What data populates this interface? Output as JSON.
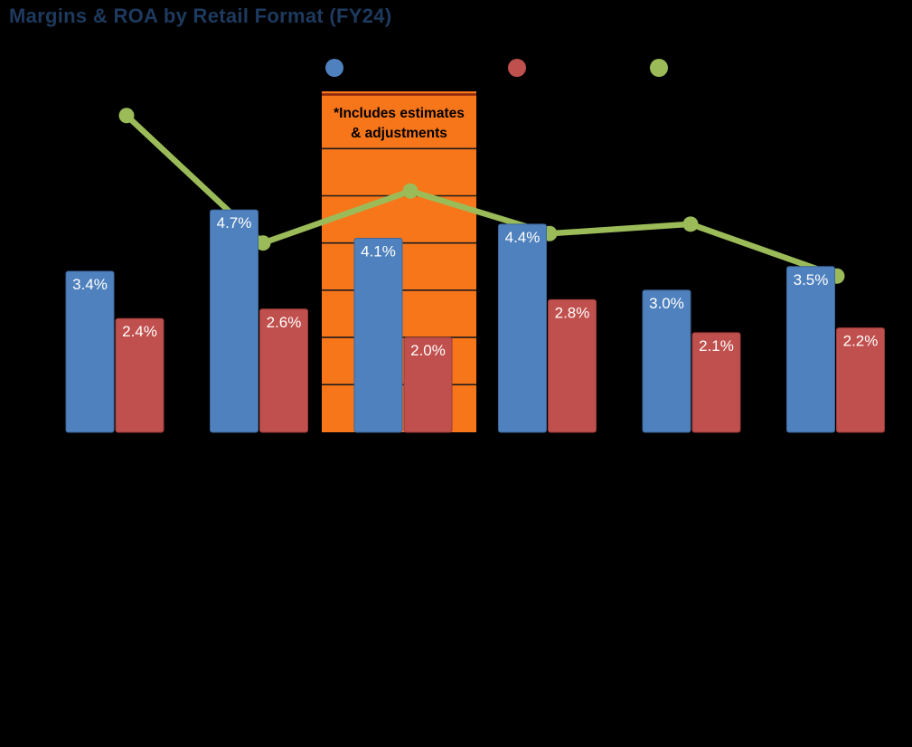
{
  "header": {
    "title": "Margins & ROA by Retail Format (FY24)",
    "title_color": "#1E3A5F"
  },
  "legend": {
    "items": [
      {
        "name": "blue-bar-series",
        "label": "",
        "color": "#4E81BD"
      },
      {
        "name": "red-bar-series",
        "label": "",
        "color": "#C0504D"
      },
      {
        "name": "green-line-series",
        "label": "",
        "color": "#9BBB59"
      }
    ]
  },
  "callout": {
    "line1": "*Includes estimates",
    "line2": "& adjustments",
    "fill": "#F8761A",
    "top_border_color": "#8C2A10",
    "gridline_color": "#1C1C1C"
  },
  "chart_data": {
    "type": "bar",
    "title": "Margins & ROA by Retail Format (FY24)",
    "categories": [
      "",
      "",
      "",
      "",
      "",
      ""
    ],
    "series": [
      {
        "name": "",
        "render": "bar",
        "color": "#4E81BD",
        "border_color": "#3D6699",
        "values": [
          3.4,
          4.7,
          4.1,
          4.4,
          3.0,
          3.5
        ],
        "data_labels": [
          "3.4%",
          "4.7%",
          "4.1%",
          "4.4%",
          "3.0%",
          "3.5%"
        ]
      },
      {
        "name": "",
        "render": "bar",
        "color": "#C0504D",
        "border_color": "#9A3B38",
        "values": [
          2.4,
          2.6,
          2.0,
          2.8,
          2.1,
          2.2
        ],
        "data_labels": [
          "2.4%",
          "2.6%",
          "2.0%",
          "2.8%",
          "2.1%",
          "2.2%"
        ]
      },
      {
        "name": "",
        "render": "line",
        "color": "#9BBB59",
        "marker": "circle",
        "values": [
          6.7,
          4.0,
          5.1,
          4.2,
          4.4,
          3.3
        ],
        "data_labels": []
      }
    ],
    "ylim": [
      0,
      7.2
    ],
    "y_unit": "percent",
    "gridline_step": 1,
    "grid_visible_only_in_highlight_region": true,
    "highlight_category_index": 2,
    "highlight_annotation": "*Includes estimates & adjustments",
    "legend_position": "top",
    "axis_tick_labels_visible": false,
    "data_label_color": "#FFFFFF"
  }
}
